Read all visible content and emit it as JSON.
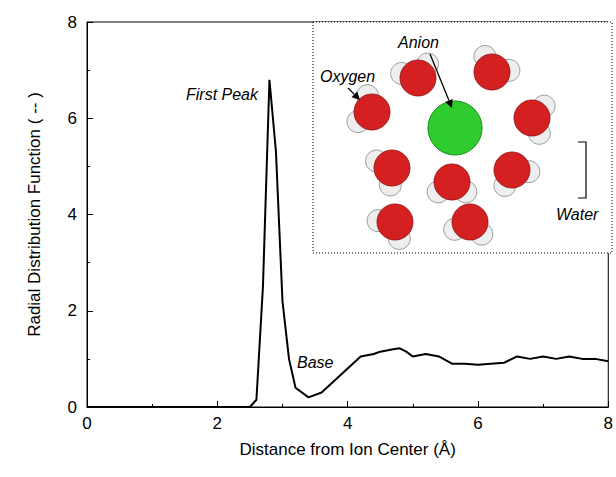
{
  "chart_data": {
    "type": "line",
    "x_label": "Distance from Ion Center (Å)",
    "y_label": "Radial Distribution Function ( -- )",
    "x": [
      0,
      2.5,
      2.6,
      2.7,
      2.8,
      2.9,
      3.0,
      3.1,
      3.2,
      3.4,
      3.6,
      3.8,
      4.0,
      4.2,
      4.4,
      4.5,
      4.7,
      4.8,
      4.9,
      5.0,
      5.2,
      5.4,
      5.6,
      5.8,
      6.0,
      6.2,
      6.4,
      6.6,
      6.8,
      7.0,
      7.2,
      7.4,
      7.6,
      7.8,
      8.0
    ],
    "values": [
      0,
      0,
      0.15,
      2.5,
      6.8,
      5.3,
      2.2,
      1.0,
      0.4,
      0.2,
      0.3,
      0.55,
      0.8,
      1.05,
      1.1,
      1.15,
      1.2,
      1.22,
      1.15,
      1.05,
      1.1,
      1.05,
      0.9,
      0.9,
      0.88,
      0.9,
      0.92,
      1.05,
      1.0,
      1.05,
      1.0,
      1.05,
      1.0,
      1.0,
      0.95
    ],
    "color": "#000000",
    "xlim": [
      0,
      8
    ],
    "xticks": [
      0,
      2,
      4,
      6,
      8
    ],
    "ylim": [
      0,
      8
    ],
    "yticks": [
      0,
      2,
      4,
      6,
      8
    ],
    "grid": false,
    "annotations": [
      "First Peak",
      "Base"
    ],
    "inset_labels": [
      "Anion",
      "Oxygen",
      "Water"
    ]
  }
}
